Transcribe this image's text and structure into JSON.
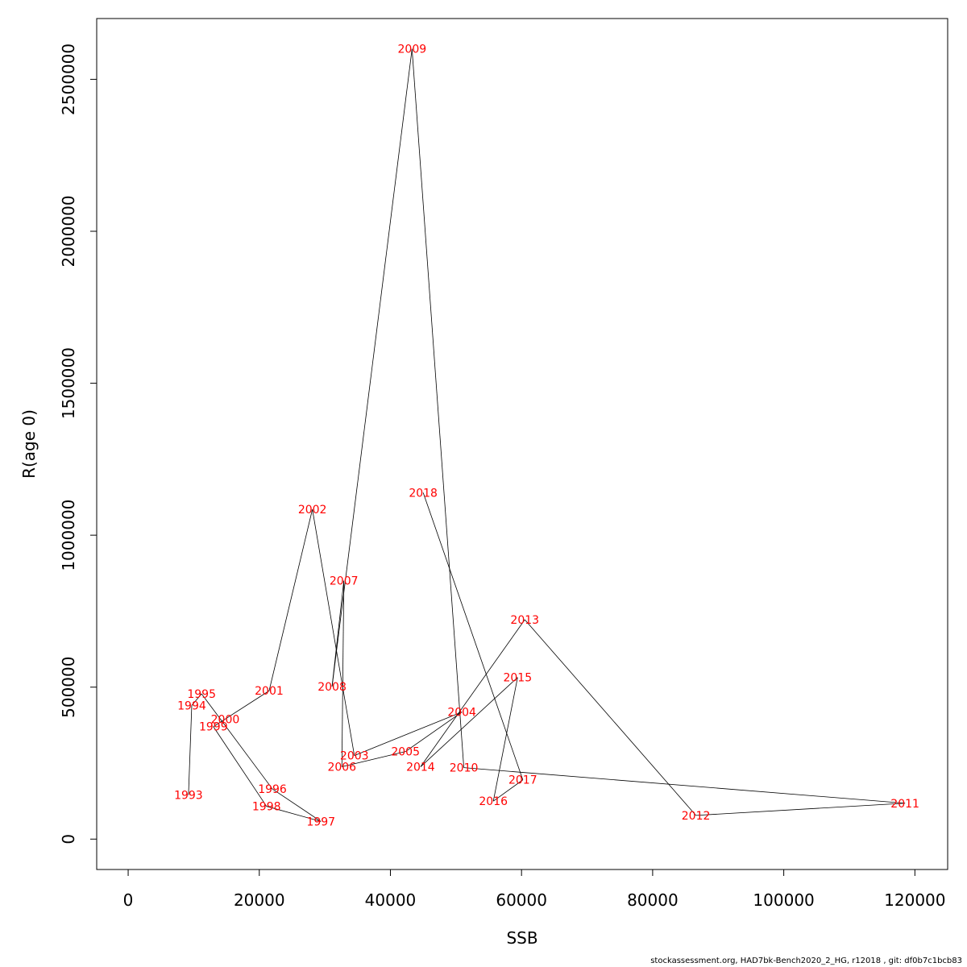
{
  "chart_data": {
    "type": "line",
    "xlabel": "SSB",
    "ylabel": "R(age 0)",
    "xlim": [
      -4800,
      125000
    ],
    "ylim": [
      -100000,
      2700000
    ],
    "x_ticks": [
      0,
      20000,
      40000,
      60000,
      80000,
      100000,
      120000
    ],
    "x_tick_labels": [
      "0",
      "20000",
      "40000",
      "60000",
      "80000",
      "100000",
      "120000"
    ],
    "y_ticks": [
      0,
      500000,
      1000000,
      1500000,
      2000000,
      2500000
    ],
    "y_tick_labels": [
      "0",
      "500000",
      "1000000",
      "1500000",
      "2000000",
      "2500000"
    ],
    "grid": false,
    "series": [
      {
        "color": "#ff0000",
        "points": [
          {
            "label": "1993",
            "x": 9200,
            "y": 145000
          },
          {
            "label": "1994",
            "x": 9700,
            "y": 440000
          },
          {
            "label": "1995",
            "x": 11200,
            "y": 478000
          },
          {
            "label": "1996",
            "x": 22000,
            "y": 165000
          },
          {
            "label": "1997",
            "x": 29400,
            "y": 58000
          },
          {
            "label": "1998",
            "x": 21100,
            "y": 108000
          },
          {
            "label": "1999",
            "x": 13000,
            "y": 370000
          },
          {
            "label": "2000",
            "x": 14800,
            "y": 395000
          },
          {
            "label": "2001",
            "x": 21500,
            "y": 488000
          },
          {
            "label": "2002",
            "x": 28100,
            "y": 1085000
          },
          {
            "label": "2003",
            "x": 34500,
            "y": 275000
          },
          {
            "label": "2004",
            "x": 50900,
            "y": 418000
          },
          {
            "label": "2005",
            "x": 42300,
            "y": 288000
          },
          {
            "label": "2006",
            "x": 32600,
            "y": 238000
          },
          {
            "label": "2007",
            "x": 32900,
            "y": 850000
          },
          {
            "label": "2008",
            "x": 31100,
            "y": 502000
          },
          {
            "label": "2009",
            "x": 43300,
            "y": 2600000
          },
          {
            "label": "2010",
            "x": 51200,
            "y": 235000
          },
          {
            "label": "2011",
            "x": 118500,
            "y": 118000
          },
          {
            "label": "2012",
            "x": 86600,
            "y": 78000
          },
          {
            "label": "2013",
            "x": 60500,
            "y": 722000
          },
          {
            "label": "2014",
            "x": 44600,
            "y": 238000
          },
          {
            "label": "2015",
            "x": 59400,
            "y": 532000
          },
          {
            "label": "2016",
            "x": 55700,
            "y": 125000
          },
          {
            "label": "2017",
            "x": 60200,
            "y": 195000
          },
          {
            "label": "2018",
            "x": 45000,
            "y": 1140000
          }
        ]
      }
    ]
  },
  "footer": "stockassessment.org, HAD7bk-Bench2020_2_HG, r12018 , git: df0b7c1bcb83"
}
